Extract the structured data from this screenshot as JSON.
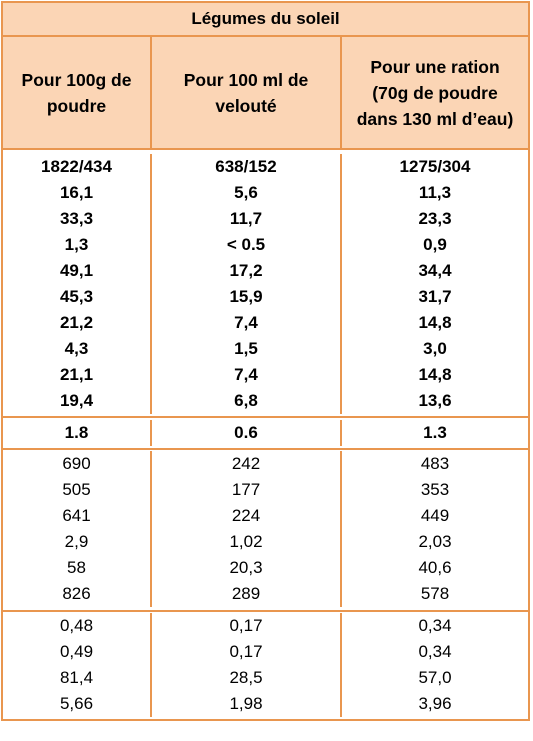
{
  "title": "Légumes du soleil",
  "headers": [
    "Pour 100g de poudre",
    "Pour 100 ml de velouté",
    "Pour une ration (70g de poudre dans 130 ml d’eau)"
  ],
  "sections": [
    {
      "rows": [
        [
          "1822/434",
          "638/152",
          "1275/304"
        ],
        [
          "16,1",
          "5,6",
          "11,3"
        ],
        [
          "33,3",
          "11,7",
          "23,3"
        ],
        [
          "1,3",
          "< 0.5",
          "0,9"
        ],
        [
          "49,1",
          "17,2",
          "34,4"
        ],
        [
          "45,3",
          "15,9",
          "31,7"
        ],
        [
          "21,2",
          "7,4",
          "14,8"
        ],
        [
          "4,3",
          "1,5",
          "3,0"
        ],
        [
          "21,1",
          "7,4",
          "14,8"
        ],
        [
          "19,4",
          "6,8",
          "13,6"
        ]
      ]
    },
    {
      "rows": [
        [
          "1.8",
          "0.6",
          "1.3"
        ]
      ]
    },
    {
      "rows": [
        [
          "690",
          "242",
          "483"
        ],
        [
          "505",
          "177",
          "353"
        ],
        [
          "641",
          "224",
          "449"
        ],
        [
          "2,9",
          "1,02",
          "2,03"
        ],
        [
          "58",
          "20,3",
          "40,6"
        ],
        [
          "826",
          "289",
          "578"
        ]
      ]
    },
    {
      "rows": [
        [
          "0,48",
          "0,17",
          "0,34"
        ],
        [
          "0,49",
          "0,17",
          "0,34"
        ],
        [
          "81,4",
          "28,5",
          "57,0"
        ],
        [
          "5,66",
          "1,98",
          "3,96"
        ]
      ]
    }
  ]
}
